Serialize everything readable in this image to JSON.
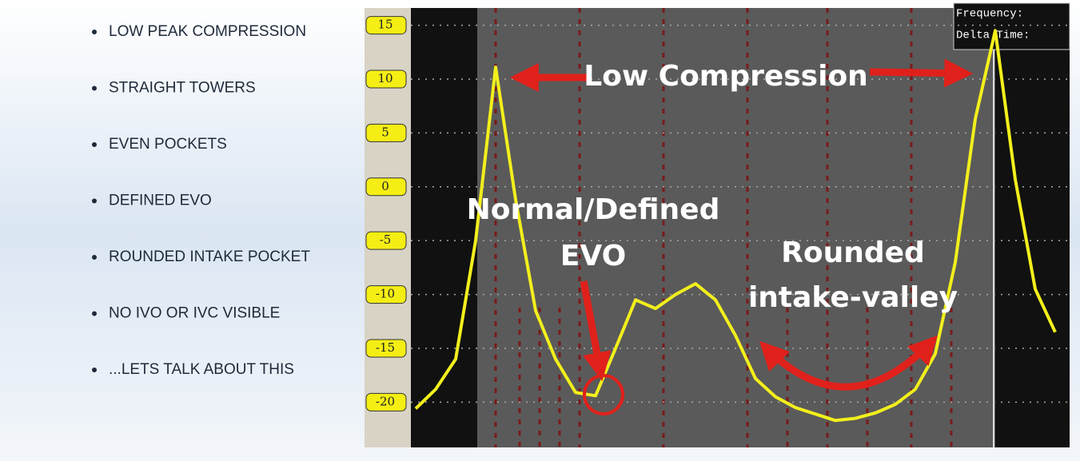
{
  "bullets": [
    "LOW PEAK COMPRESSION",
    "STRAIGHT TOWERS",
    "EVEN POCKETS",
    "DEFINED EVO",
    "ROUNDED INTAKE POCKET",
    "NO IVO OR IVC VISIBLE",
    "...LETS TALK ABOUT THIS"
  ],
  "scope_readout": [
    "Frequency:",
    "Delta Time:"
  ],
  "chart_data": {
    "type": "line",
    "annotations": [
      "Low Compression",
      "Normal/Defined",
      "EVO",
      "Rounded",
      "intake-valley"
    ],
    "values": [
      -20.6,
      -18.8,
      -16,
      -5,
      11.1,
      -1.2,
      -11.5,
      -16,
      -19.1,
      -19.4,
      -15,
      -10.5,
      -11.3,
      -10,
      -9,
      -10.5,
      -13.8,
      -17.8,
      -19.5,
      -20.5,
      -21.1,
      -21.7,
      -21.5,
      -21,
      -20.2,
      -18.8,
      -15.5,
      -7,
      6.3,
      14.5,
      0.7,
      -9.5,
      -13.5
    ],
    "color": "#f2ef1c",
    "ylim": [
      -24.2,
      16.6
    ],
    "yticks": [
      15,
      10,
      5,
      0,
      -5,
      -10,
      -15,
      -20
    ],
    "grid": true
  }
}
